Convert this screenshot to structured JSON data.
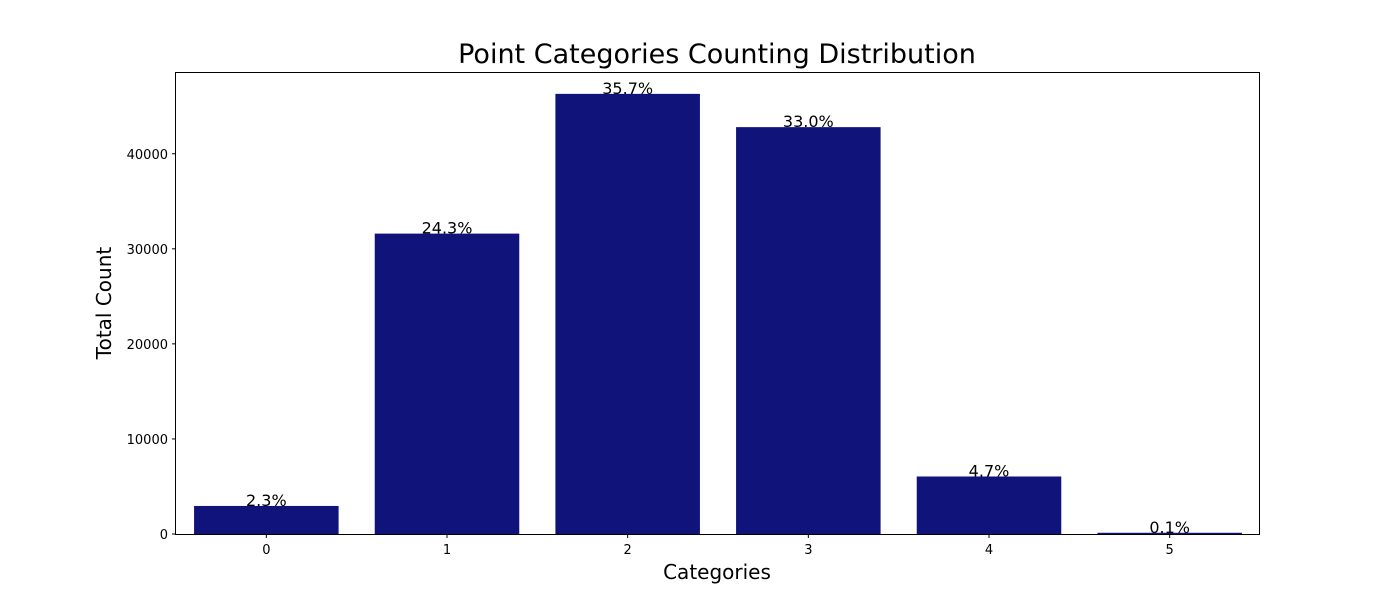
{
  "chart_data": {
    "type": "bar",
    "title": "Point Categories Counting Distribution",
    "xlabel": "Categories",
    "ylabel": "Total Count",
    "categories": [
      "0",
      "1",
      "2",
      "3",
      "4",
      "5"
    ],
    "values": [
      2950,
      31600,
      46300,
      42800,
      6050,
      130
    ],
    "data_labels": [
      "2.3%",
      "24.3%",
      "35.7%",
      "33.0%",
      "4.7%",
      "0.1%"
    ],
    "yticks": [
      0,
      10000,
      20000,
      30000,
      40000
    ],
    "ylim": [
      0,
      48600
    ],
    "bar_color": "#10137A",
    "grid": false,
    "legend": "none"
  }
}
